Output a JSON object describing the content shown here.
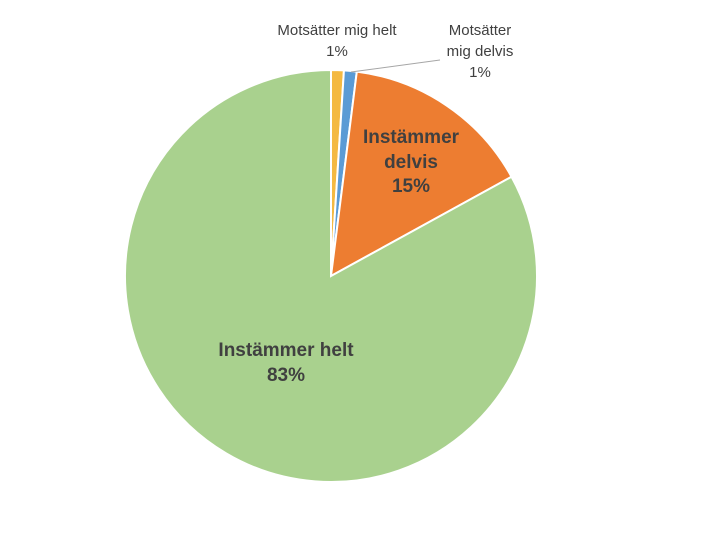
{
  "chart_data": {
    "type": "pie",
    "categories": [
      "Motsätter mig helt",
      "Motsätter mig delvis",
      "Instämmer delvis",
      "Instämmer helt"
    ],
    "values": [
      1,
      1,
      15,
      83
    ],
    "value_labels": [
      "1%",
      "1%",
      "15%",
      "83%"
    ],
    "colors": [
      "#f4b942",
      "#5b9bd5",
      "#ed7d31",
      "#a9d18e"
    ]
  }
}
